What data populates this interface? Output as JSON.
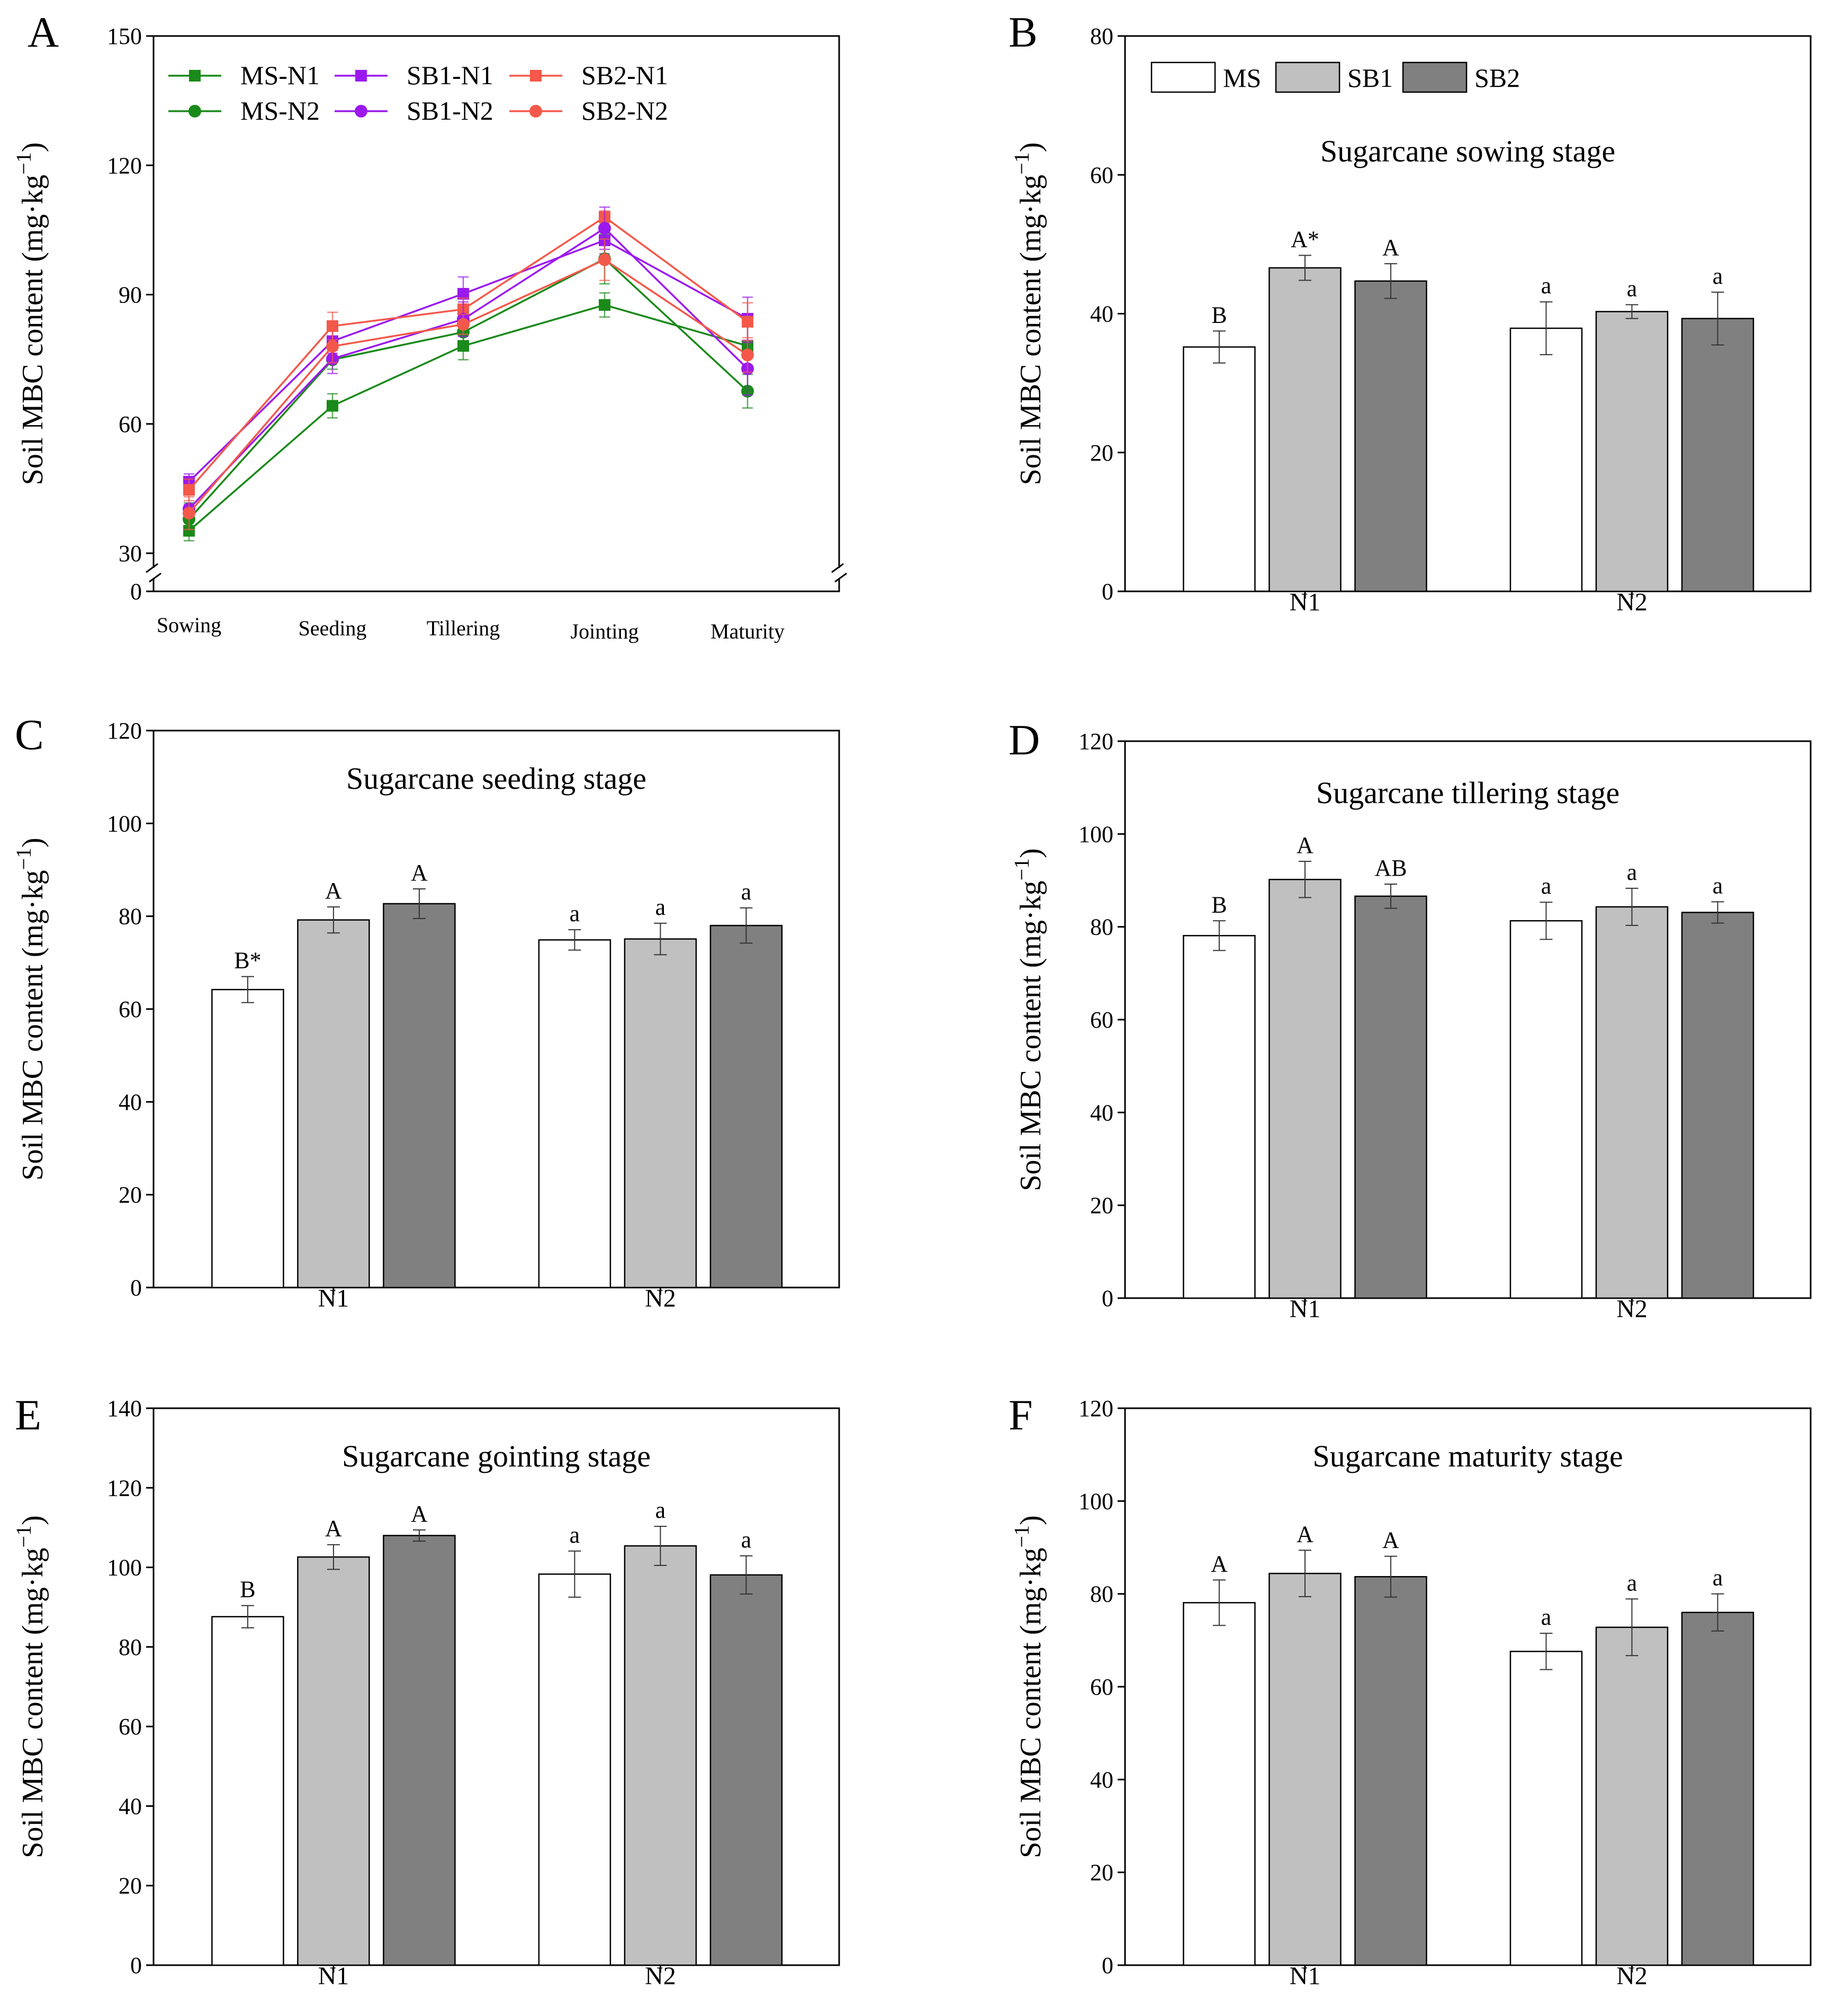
{
  "figure": {
    "y_axis_label": "Soil MBC content (mg·kg",
    "y_axis_unit_sup": "−1",
    "y_axis_label_close": ")"
  },
  "chart_data": [
    {
      "panel": "A",
      "type": "line",
      "title": "",
      "ylabel": "Soil MBC content (mg·kg−1)",
      "ylim": [
        0,
        150
      ],
      "yticks": [
        "0",
        "30",
        "60",
        "90",
        "120",
        "150"
      ],
      "axis_break": true,
      "categories": [
        "Sowing",
        "Seeding",
        "Tillering",
        "Jointing",
        "Maturity"
      ],
      "legend": {
        "position": "top-left"
      },
      "series": [
        {
          "name": "MS-N1",
          "color": "#1a8a1a",
          "marker": "square",
          "values": [
            35.2,
            64.2,
            78.1,
            87.6,
            78.1
          ],
          "errors": [
            2.3,
            2.8,
            3.2,
            2.8,
            4.9
          ]
        },
        {
          "name": "SB1-N1",
          "color": "#9b19ef",
          "marker": "square",
          "values": [
            46.6,
            79.2,
            90.2,
            102.6,
            84.4
          ],
          "errors": [
            1.8,
            2.8,
            3.9,
            3.1,
            5.0
          ]
        },
        {
          "name": "SB2-N1",
          "color": "#f4584a",
          "marker": "square",
          "values": [
            44.7,
            82.7,
            86.6,
            108.0,
            83.7
          ],
          "errors": [
            2.5,
            3.2,
            2.6,
            1.4,
            4.4
          ]
        },
        {
          "name": "MS-N2",
          "color": "#1a8a1a",
          "marker": "circle",
          "values": [
            37.9,
            74.9,
            81.3,
            98.3,
            67.6
          ],
          "errors": [
            3.8,
            2.2,
            4.0,
            5.8,
            3.9
          ]
        },
        {
          "name": "SB1-N2",
          "color": "#9b19ef",
          "marker": "circle",
          "values": [
            40.3,
            75.1,
            84.3,
            105.4,
            72.8
          ],
          "errors": [
            1.0,
            3.4,
            4.0,
            4.9,
            6.1
          ]
        },
        {
          "name": "SB2-N2",
          "color": "#f4584a",
          "marker": "circle",
          "values": [
            39.3,
            78.0,
            83.1,
            98.1,
            76.0
          ],
          "errors": [
            3.8,
            3.8,
            2.3,
            4.8,
            4.0
          ]
        }
      ]
    },
    {
      "panel": "B",
      "type": "bar",
      "title": "Sugarcane sowing stage",
      "ylabel": "Soil MBC content (mg·kg−1)",
      "ylim": [
        0,
        80
      ],
      "yticks": [
        "0",
        "20",
        "40",
        "60",
        "80"
      ],
      "categories": [
        "N1",
        "N2"
      ],
      "legend": {
        "position": "top-left",
        "entries": [
          "MS",
          "SB1",
          "SB2"
        ]
      },
      "series": [
        {
          "name": "MS",
          "color": "#ffffff",
          "values": [
            35.2,
            37.9
          ],
          "errors": [
            2.3,
            3.8
          ],
          "labels": [
            "B",
            "a"
          ]
        },
        {
          "name": "SB1",
          "color": "#c0c0c0",
          "values": [
            46.6,
            40.3
          ],
          "errors": [
            1.8,
            1.0
          ],
          "labels": [
            "A*",
            "a"
          ]
        },
        {
          "name": "SB2",
          "color": "#808080",
          "values": [
            44.7,
            39.3
          ],
          "errors": [
            2.5,
            3.8
          ],
          "labels": [
            "A",
            "a"
          ]
        }
      ]
    },
    {
      "panel": "C",
      "type": "bar",
      "title": "Sugarcane seeding stage",
      "ylabel": "Soil MBC content (mg·kg−1)",
      "ylim": [
        0,
        120
      ],
      "yticks": [
        "0",
        "20",
        "40",
        "60",
        "80",
        "100",
        "120"
      ],
      "categories": [
        "N1",
        "N2"
      ],
      "series": [
        {
          "name": "MS",
          "color": "#ffffff",
          "values": [
            64.2,
            74.9
          ],
          "errors": [
            2.8,
            2.2
          ],
          "labels": [
            "B*",
            "a"
          ]
        },
        {
          "name": "SB1",
          "color": "#c0c0c0",
          "values": [
            79.2,
            75.1
          ],
          "errors": [
            2.8,
            3.4
          ],
          "labels": [
            "A",
            "a"
          ]
        },
        {
          "name": "SB2",
          "color": "#808080",
          "values": [
            82.7,
            78.0
          ],
          "errors": [
            3.2,
            3.8
          ],
          "labels": [
            "A",
            "a"
          ]
        }
      ]
    },
    {
      "panel": "D",
      "type": "bar",
      "title": "Sugarcane tillering stage",
      "ylabel": "Soil MBC content (mg·kg−1)",
      "ylim": [
        0,
        120
      ],
      "yticks": [
        "0",
        "20",
        "40",
        "60",
        "80",
        "100",
        "120"
      ],
      "categories": [
        "N1",
        "N2"
      ],
      "series": [
        {
          "name": "MS",
          "color": "#ffffff",
          "values": [
            78.1,
            81.3
          ],
          "errors": [
            3.2,
            4.0
          ],
          "labels": [
            "B",
            "a"
          ]
        },
        {
          "name": "SB1",
          "color": "#c0c0c0",
          "values": [
            90.2,
            84.3
          ],
          "errors": [
            3.9,
            4.0
          ],
          "labels": [
            "A",
            "a"
          ]
        },
        {
          "name": "SB2",
          "color": "#808080",
          "values": [
            86.6,
            83.1
          ],
          "errors": [
            2.6,
            2.3
          ],
          "labels": [
            "AB",
            "a"
          ]
        }
      ]
    },
    {
      "panel": "E",
      "type": "bar",
      "title": "Sugarcane gointing stage",
      "ylabel": "Soil MBC content (mg·kg−1)",
      "ylim": [
        0,
        140
      ],
      "yticks": [
        "0",
        "20",
        "40",
        "60",
        "80",
        "100",
        "120",
        "140"
      ],
      "categories": [
        "N1",
        "N2"
      ],
      "series": [
        {
          "name": "MS",
          "color": "#ffffff",
          "values": [
            87.6,
            98.3
          ],
          "errors": [
            2.8,
            5.8
          ],
          "labels": [
            "B",
            "a"
          ]
        },
        {
          "name": "SB1",
          "color": "#c0c0c0",
          "values": [
            102.6,
            105.4
          ],
          "errors": [
            3.1,
            4.9
          ],
          "labels": [
            "A",
            "a"
          ]
        },
        {
          "name": "SB2",
          "color": "#808080",
          "values": [
            108.0,
            98.1
          ],
          "errors": [
            1.4,
            4.8
          ],
          "labels": [
            "A",
            "a"
          ]
        }
      ]
    },
    {
      "panel": "F",
      "type": "bar",
      "title": "Sugarcane maturity stage",
      "ylabel": "Soil MBC content (mg·kg−1)",
      "ylim": [
        0,
        120
      ],
      "yticks": [
        "0",
        "20",
        "40",
        "60",
        "80",
        "100",
        "120"
      ],
      "categories": [
        "N1",
        "N2"
      ],
      "series": [
        {
          "name": "MS",
          "color": "#ffffff",
          "values": [
            78.1,
            67.6
          ],
          "errors": [
            4.9,
            3.9
          ],
          "labels": [
            "A",
            "a"
          ]
        },
        {
          "name": "SB1",
          "color": "#c0c0c0",
          "values": [
            84.4,
            72.8
          ],
          "errors": [
            5.0,
            6.1
          ],
          "labels": [
            "A",
            "a"
          ]
        },
        {
          "name": "SB2",
          "color": "#808080",
          "values": [
            83.7,
            76.0
          ],
          "errors": [
            4.4,
            4.0
          ],
          "labels": [
            "A",
            "a"
          ]
        }
      ]
    }
  ]
}
